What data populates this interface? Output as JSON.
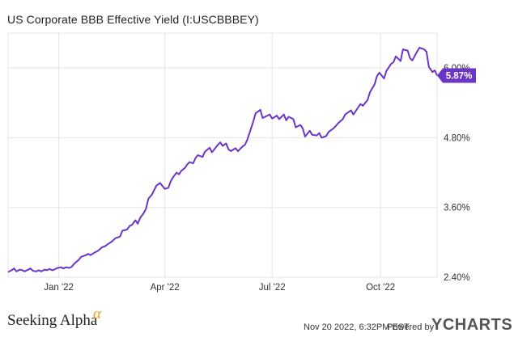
{
  "header": {
    "title": "US Corporate BBB Effective Yield (I:USCBBBEY)"
  },
  "footer": {
    "brand": "Seeking Alpha",
    "brand_mark": "α",
    "date": "Nov 20 2022, 6:32PM EST.",
    "powered_by": "Powered by",
    "logo": "YCHARTS"
  },
  "colors": {
    "line": "#6a35c8",
    "grid": "#e5e5e5",
    "callout": "#6a35c8"
  },
  "chart_data": {
    "type": "line",
    "title": "US Corporate BBB Effective Yield (I:USCBBBEY)",
    "xlabel": "",
    "ylabel": "",
    "x_range": [
      "2021-11-19",
      "2022-11-18"
    ],
    "ylim": [
      2.4,
      6.6
    ],
    "y_ticks": [
      {
        "value": 2.4,
        "label": "2.40%"
      },
      {
        "value": 3.6,
        "label": "3.60%"
      },
      {
        "value": 4.8,
        "label": "4.80%"
      },
      {
        "value": 6.0,
        "label": "6.00%"
      }
    ],
    "x_ticks": [
      {
        "date": "2022-01-01",
        "label": "Jan '22"
      },
      {
        "date": "2022-04-01",
        "label": "Apr '22"
      },
      {
        "date": "2022-07-01",
        "label": "Jul '22"
      },
      {
        "date": "2022-10-01",
        "label": "Oct '22"
      }
    ],
    "grid": true,
    "last_value": {
      "date": "2022-11-18",
      "value": 5.87,
      "label": "5.87%"
    },
    "series": [
      {
        "name": "US Corporate BBB Effective Yield",
        "points": [
          [
            "2021-11-19",
            2.49
          ],
          [
            "2021-11-22",
            2.52
          ],
          [
            "2021-11-24",
            2.55
          ],
          [
            "2021-11-26",
            2.5
          ],
          [
            "2021-11-29",
            2.53
          ],
          [
            "2021-12-01",
            2.52
          ],
          [
            "2021-12-03",
            2.5
          ],
          [
            "2021-12-06",
            2.53
          ],
          [
            "2021-12-08",
            2.55
          ],
          [
            "2021-12-10",
            2.51
          ],
          [
            "2021-12-13",
            2.5
          ],
          [
            "2021-12-15",
            2.52
          ],
          [
            "2021-12-17",
            2.5
          ],
          [
            "2021-12-20",
            2.53
          ],
          [
            "2021-12-22",
            2.52
          ],
          [
            "2021-12-24",
            2.54
          ],
          [
            "2021-12-27",
            2.52
          ],
          [
            "2021-12-29",
            2.54
          ],
          [
            "2021-12-31",
            2.56
          ],
          [
            "2022-01-03",
            2.57
          ],
          [
            "2022-01-05",
            2.55
          ],
          [
            "2022-01-07",
            2.57
          ],
          [
            "2022-01-10",
            2.56
          ],
          [
            "2022-01-12",
            2.58
          ],
          [
            "2022-01-14",
            2.63
          ],
          [
            "2022-01-18",
            2.7
          ],
          [
            "2022-01-20",
            2.75
          ],
          [
            "2022-01-24",
            2.78
          ],
          [
            "2022-01-26",
            2.8
          ],
          [
            "2022-01-28",
            2.78
          ],
          [
            "2022-01-31",
            2.82
          ],
          [
            "2022-02-03",
            2.85
          ],
          [
            "2022-02-07",
            2.92
          ],
          [
            "2022-02-09",
            2.93
          ],
          [
            "2022-02-11",
            2.96
          ],
          [
            "2022-02-14",
            3.0
          ],
          [
            "2022-02-16",
            3.03
          ],
          [
            "2022-02-18",
            3.07
          ],
          [
            "2022-02-22",
            3.1
          ],
          [
            "2022-02-24",
            3.2
          ],
          [
            "2022-02-28",
            3.22
          ],
          [
            "2022-03-02",
            3.28
          ],
          [
            "2022-03-04",
            3.3
          ],
          [
            "2022-03-07",
            3.38
          ],
          [
            "2022-03-09",
            3.32
          ],
          [
            "2022-03-11",
            3.42
          ],
          [
            "2022-03-14",
            3.5
          ],
          [
            "2022-03-16",
            3.58
          ],
          [
            "2022-03-18",
            3.75
          ],
          [
            "2022-03-21",
            3.82
          ],
          [
            "2022-03-23",
            3.9
          ],
          [
            "2022-03-25",
            3.98
          ],
          [
            "2022-03-28",
            4.02
          ],
          [
            "2022-03-30",
            3.97
          ],
          [
            "2022-04-01",
            3.92
          ],
          [
            "2022-04-04",
            3.94
          ],
          [
            "2022-04-06",
            4.05
          ],
          [
            "2022-04-08",
            4.12
          ],
          [
            "2022-04-11",
            4.2
          ],
          [
            "2022-04-13",
            4.17
          ],
          [
            "2022-04-15",
            4.23
          ],
          [
            "2022-04-18",
            4.28
          ],
          [
            "2022-04-20",
            4.34
          ],
          [
            "2022-04-22",
            4.38
          ],
          [
            "2022-04-25",
            4.36
          ],
          [
            "2022-04-27",
            4.45
          ],
          [
            "2022-04-29",
            4.5
          ],
          [
            "2022-05-03",
            4.47
          ],
          [
            "2022-05-05",
            4.56
          ],
          [
            "2022-05-09",
            4.63
          ],
          [
            "2022-05-11",
            4.55
          ],
          [
            "2022-05-13",
            4.6
          ],
          [
            "2022-05-16",
            4.68
          ],
          [
            "2022-05-18",
            4.72
          ],
          [
            "2022-05-20",
            4.66
          ],
          [
            "2022-05-23",
            4.7
          ],
          [
            "2022-05-25",
            4.6
          ],
          [
            "2022-05-27",
            4.57
          ],
          [
            "2022-05-31",
            4.62
          ],
          [
            "2022-06-02",
            4.57
          ],
          [
            "2022-06-06",
            4.65
          ],
          [
            "2022-06-08",
            4.68
          ],
          [
            "2022-06-10",
            4.77
          ],
          [
            "2022-06-13",
            4.95
          ],
          [
            "2022-06-15",
            5.08
          ],
          [
            "2022-06-17",
            5.22
          ],
          [
            "2022-06-21",
            5.28
          ],
          [
            "2022-06-23",
            5.14
          ],
          [
            "2022-06-27",
            5.18
          ],
          [
            "2022-06-29",
            5.2
          ],
          [
            "2022-07-01",
            5.13
          ],
          [
            "2022-07-05",
            5.18
          ],
          [
            "2022-07-07",
            5.12
          ],
          [
            "2022-07-11",
            5.2
          ],
          [
            "2022-07-13",
            5.1
          ],
          [
            "2022-07-15",
            5.16
          ],
          [
            "2022-07-19",
            5.12
          ],
          [
            "2022-07-21",
            4.98
          ],
          [
            "2022-07-25",
            5.02
          ],
          [
            "2022-07-27",
            4.96
          ],
          [
            "2022-07-29",
            4.82
          ],
          [
            "2022-08-02",
            4.92
          ],
          [
            "2022-08-04",
            4.85
          ],
          [
            "2022-08-08",
            4.84
          ],
          [
            "2022-08-10",
            4.88
          ],
          [
            "2022-08-12",
            4.8
          ],
          [
            "2022-08-16",
            4.83
          ],
          [
            "2022-08-18",
            4.9
          ],
          [
            "2022-08-22",
            4.96
          ],
          [
            "2022-08-24",
            5.0
          ],
          [
            "2022-08-26",
            5.05
          ],
          [
            "2022-08-30",
            5.12
          ],
          [
            "2022-09-01",
            5.2
          ],
          [
            "2022-09-06",
            5.27
          ],
          [
            "2022-09-08",
            5.2
          ],
          [
            "2022-09-12",
            5.32
          ],
          [
            "2022-09-14",
            5.38
          ],
          [
            "2022-09-16",
            5.35
          ],
          [
            "2022-09-20",
            5.45
          ],
          [
            "2022-09-22",
            5.58
          ],
          [
            "2022-09-26",
            5.72
          ],
          [
            "2022-09-28",
            5.86
          ],
          [
            "2022-09-30",
            5.92
          ],
          [
            "2022-10-04",
            5.82
          ],
          [
            "2022-10-06",
            5.95
          ],
          [
            "2022-10-10",
            6.07
          ],
          [
            "2022-10-12",
            6.1
          ],
          [
            "2022-10-14",
            6.2
          ],
          [
            "2022-10-18",
            6.12
          ],
          [
            "2022-10-20",
            6.32
          ],
          [
            "2022-10-24",
            6.3
          ],
          [
            "2022-10-26",
            6.17
          ],
          [
            "2022-10-28",
            6.13
          ],
          [
            "2022-11-01",
            6.28
          ],
          [
            "2022-11-03",
            6.35
          ],
          [
            "2022-11-07",
            6.32
          ],
          [
            "2022-11-09",
            6.28
          ],
          [
            "2022-11-11",
            6.02
          ],
          [
            "2022-11-14",
            5.93
          ],
          [
            "2022-11-16",
            5.96
          ],
          [
            "2022-11-18",
            5.87
          ]
        ]
      }
    ]
  }
}
